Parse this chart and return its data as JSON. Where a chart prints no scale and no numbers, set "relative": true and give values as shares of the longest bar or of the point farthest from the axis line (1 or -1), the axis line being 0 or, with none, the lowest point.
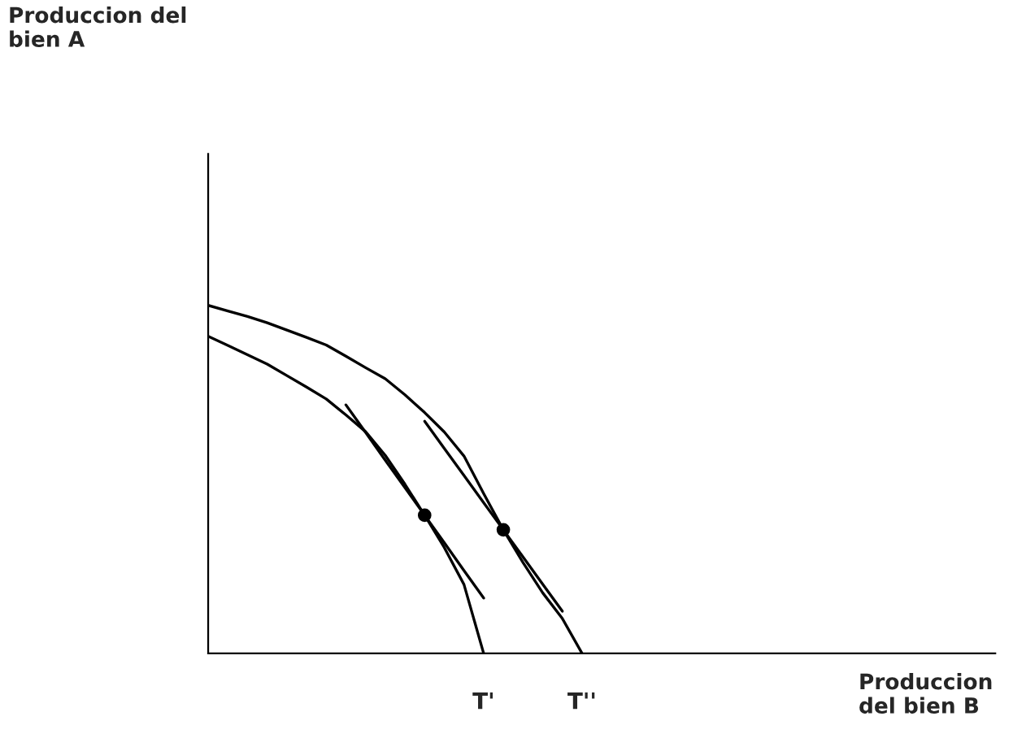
{
  "chart_data": {
    "type": "line",
    "relative": true,
    "xlabel": "Produccion\ndel bien B",
    "annotations": [
      "Produccion del\nbien A"
    ],
    "categories": [
      null,
      null,
      null,
      null,
      null,
      null,
      null,
      null,
      null,
      null,
      null,
      null,
      null,
      null,
      "T'",
      null,
      null,
      null,
      null,
      "T''",
      null,
      null,
      null,
      null,
      null,
      null,
      null,
      null,
      null,
      null,
      null,
      null,
      null,
      null,
      null,
      null,
      null,
      null,
      null,
      null,
      null
    ],
    "tick_labels": "x",
    "grid": false,
    "legend": false,
    "series": [
      {
        "color": "#000000",
        "values": [
          1.0,
          0.984,
          0.968,
          0.95,
          0.929,
          0.908,
          0.886,
          0.854,
          0.821,
          0.789,
          0.743,
          0.692,
          0.636,
          0.567,
          0.459,
          0.355,
          0.261,
          0.174,
          0.1,
          0,
          null,
          null,
          null,
          null,
          null,
          null,
          null,
          null,
          null,
          null,
          null,
          null,
          null,
          null,
          null,
          null,
          null,
          null,
          null,
          null,
          null
        ]
      },
      {
        "color": "#000000",
        "values": [
          0.911,
          0.885,
          0.858,
          0.831,
          0.798,
          0.765,
          0.731,
          0.685,
          0.637,
          0.569,
          0.486,
          0.397,
          0.304,
          0.198,
          0,
          null,
          null,
          null,
          null,
          null,
          null,
          null,
          null,
          null,
          null,
          null,
          null,
          null,
          null,
          null,
          null,
          null,
          null,
          null,
          null,
          null,
          null,
          null,
          null,
          null,
          null
        ]
      },
      {
        "color": "#000000",
        "values": [
          null,
          null,
          null,
          null,
          null,
          null,
          null,
          0.714,
          0.635,
          0.555,
          0.476,
          0.397,
          0.318,
          0.238,
          0.159,
          null,
          null,
          null,
          null,
          null,
          null,
          null,
          null,
          null,
          null,
          null,
          null,
          null,
          null,
          null,
          null,
          null,
          null,
          null,
          null,
          null,
          null,
          null,
          null,
          null,
          null
        ]
      },
      {
        "color": "#000000",
        "values": [
          null,
          null,
          null,
          null,
          null,
          null,
          null,
          null,
          null,
          null,
          null,
          0.667,
          0.589,
          0.511,
          0.433,
          0.355,
          0.277,
          0.199,
          0.121,
          null,
          null,
          null,
          null,
          null,
          null,
          null,
          null,
          null,
          null,
          null,
          null,
          null,
          null,
          null,
          null,
          null,
          null,
          null,
          null,
          null,
          null
        ]
      },
      {
        "type": "scatter",
        "color": "#000000",
        "marker": "circle",
        "values": [
          null,
          null,
          null,
          null,
          null,
          null,
          null,
          null,
          null,
          null,
          null,
          0.397,
          null,
          null,
          null,
          0.355,
          null,
          null,
          null,
          null,
          null,
          null,
          null,
          null,
          null,
          null,
          null,
          null,
          null,
          null,
          null,
          null,
          null,
          null,
          null,
          null,
          null,
          null,
          null,
          null,
          null
        ]
      }
    ]
  }
}
